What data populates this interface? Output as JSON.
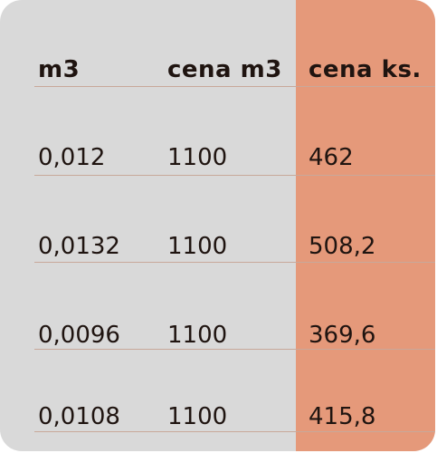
{
  "table": {
    "headers": [
      "m3",
      "cena m3",
      "cena ks."
    ],
    "rows": [
      [
        "0,012",
        "1100",
        "462"
      ],
      [
        "0,0132",
        "1100",
        "508,2"
      ],
      [
        "0,0096",
        "1100",
        "369,6"
      ],
      [
        "0,0108",
        "1100",
        "415,8"
      ]
    ]
  },
  "colors": {
    "background": "#d9d9d9",
    "highlight_column": "#e5997a",
    "text": "#1f1410",
    "divider": "#c8a89a"
  }
}
